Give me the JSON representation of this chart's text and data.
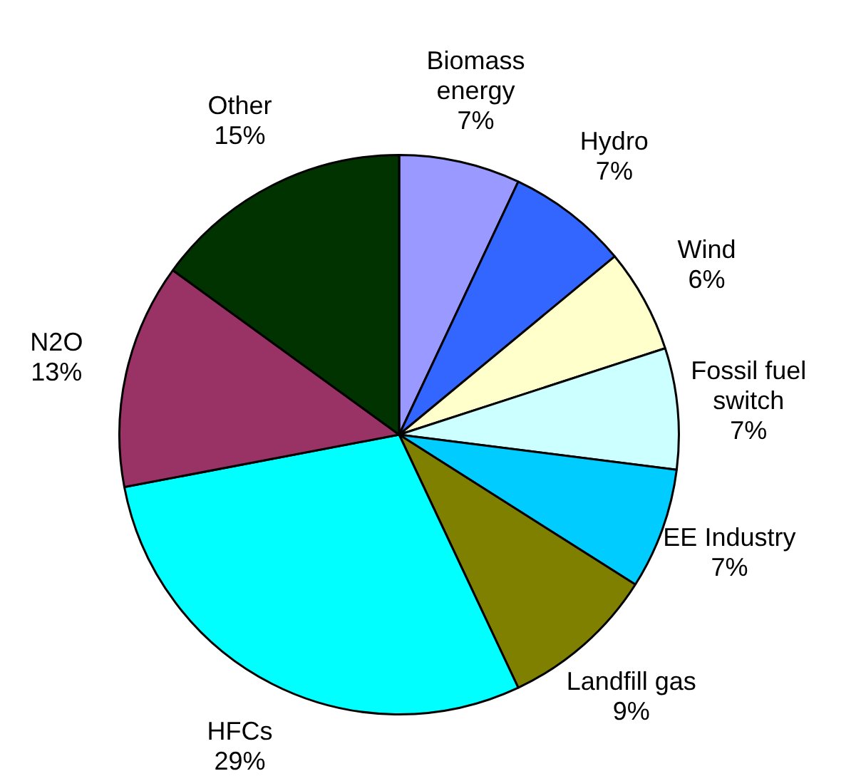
{
  "chart_data": {
    "type": "pie",
    "categories": [
      "Biomass energy",
      "Hydro",
      "Wind",
      "Fossil fuel switch",
      "EE Industry",
      "Landfill gas",
      "HFCs",
      "N2O",
      "Other"
    ],
    "values": [
      7,
      7,
      6,
      7,
      7,
      9,
      29,
      13,
      15
    ],
    "colors": [
      "#9999ff",
      "#3366ff",
      "#ffffcc",
      "#ccffff",
      "#00ccff",
      "#808000",
      "#00ffff",
      "#993366",
      "#003300"
    ],
    "value_labels": [
      "7%",
      "7%",
      "6%",
      "7%",
      "7%",
      "9%",
      "29%",
      "13%",
      "15%"
    ],
    "legend": false
  }
}
